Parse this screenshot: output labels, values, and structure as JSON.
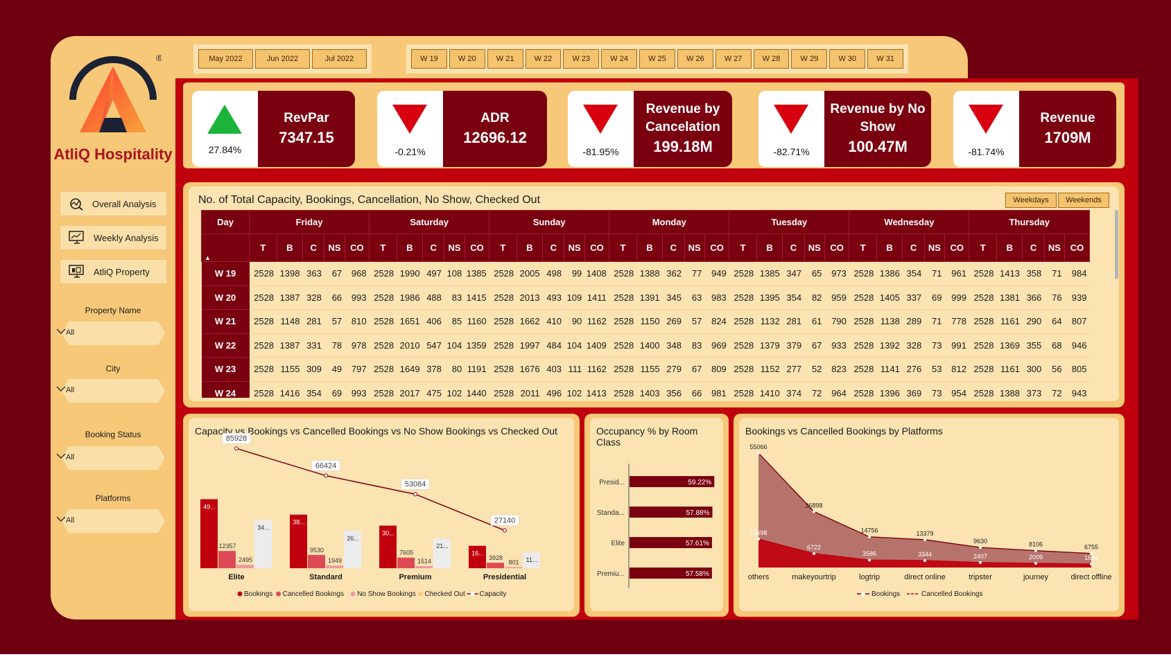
{
  "brand": {
    "name": "AtliQ Hospitality",
    "registered": "®"
  },
  "nav": [
    {
      "label": "Overall Analysis",
      "icon": "analysis-icon"
    },
    {
      "label": "Weekly Analysis",
      "icon": "monitor-chart-icon"
    },
    {
      "label": "AtliQ Property",
      "icon": "monitor-property-icon"
    }
  ],
  "filters": [
    {
      "label": "Property Name",
      "value": "All"
    },
    {
      "label": "City",
      "value": "All"
    },
    {
      "label": "Booking Status",
      "value": "All"
    },
    {
      "label": "Platforms",
      "value": "All"
    }
  ],
  "months": [
    "May 2022",
    "Jun 2022",
    "Jul 2022"
  ],
  "weeks": [
    "W 19",
    "W 20",
    "W 21",
    "W 22",
    "W 23",
    "W 24",
    "W 25",
    "W 26",
    "W 27",
    "W 28",
    "W 29",
    "W 30",
    "W 31"
  ],
  "kpis": [
    {
      "title": "RevPar",
      "value": "7347.15",
      "change": "27.84%",
      "direction": "up"
    },
    {
      "title": "ADR",
      "value": "12696.12",
      "change": "-0.21%",
      "direction": "down"
    },
    {
      "title": "Revenue by Cancelation",
      "value": "199.18M",
      "change": "-81.95%",
      "direction": "down"
    },
    {
      "title": "Revenue by No Show",
      "value": "100.47M",
      "change": "-82.71%",
      "direction": "down"
    },
    {
      "title": "Revenue",
      "value": "1709M",
      "change": "-81.74%",
      "direction": "down"
    }
  ],
  "colors": {
    "maroon": "#7a0010",
    "red": "#c1000e",
    "cream": "#f6c878",
    "green": "#1db43a",
    "arrow_red": "#d8000f"
  },
  "table": {
    "title": "No. of Total Capacity, Bookings, Cancellation, No Show, Checked Out",
    "toggles": [
      "Weekdays",
      "Weekends"
    ],
    "day_header": "Day",
    "sort_indicator": "▲",
    "days": [
      "Friday",
      "Saturday",
      "Sunday",
      "Monday",
      "Tuesday",
      "Wednesday",
      "Thursday"
    ],
    "metrics": [
      "T",
      "B",
      "C",
      "NS",
      "CO"
    ],
    "rows": [
      {
        "week": "W 19",
        "values": [
          2528,
          1398,
          363,
          67,
          968,
          2528,
          1990,
          497,
          108,
          1385,
          2528,
          2005,
          498,
          99,
          1408,
          2528,
          1388,
          362,
          77,
          949,
          2528,
          1385,
          347,
          65,
          973,
          2528,
          1386,
          354,
          71,
          961,
          2528,
          1413,
          358,
          71,
          984
        ]
      },
      {
        "week": "W 20",
        "values": [
          2528,
          1387,
          328,
          66,
          993,
          2528,
          1986,
          488,
          83,
          1415,
          2528,
          2013,
          493,
          109,
          1411,
          2528,
          1391,
          345,
          63,
          983,
          2528,
          1395,
          354,
          82,
          959,
          2528,
          1405,
          337,
          69,
          999,
          2528,
          1381,
          366,
          76,
          939
        ]
      },
      {
        "week": "W 21",
        "values": [
          2528,
          1148,
          281,
          57,
          810,
          2528,
          1651,
          406,
          85,
          1160,
          2528,
          1662,
          410,
          90,
          1162,
          2528,
          1150,
          269,
          57,
          824,
          2528,
          1132,
          281,
          61,
          790,
          2528,
          1138,
          289,
          71,
          778,
          2528,
          1161,
          290,
          64,
          807
        ]
      },
      {
        "week": "W 22",
        "values": [
          2528,
          1387,
          331,
          78,
          978,
          2528,
          2010,
          547,
          104,
          1359,
          2528,
          1997,
          484,
          104,
          1409,
          2528,
          1400,
          348,
          83,
          969,
          2528,
          1379,
          379,
          67,
          933,
          2528,
          1392,
          328,
          73,
          991,
          2528,
          1369,
          355,
          68,
          946
        ]
      },
      {
        "week": "W 23",
        "values": [
          2528,
          1155,
          309,
          49,
          797,
          2528,
          1649,
          378,
          80,
          1191,
          2528,
          1676,
          403,
          111,
          1162,
          2528,
          1155,
          279,
          67,
          809,
          2528,
          1152,
          277,
          52,
          823,
          2528,
          1141,
          276,
          53,
          812,
          2528,
          1161,
          300,
          56,
          805
        ]
      },
      {
        "week": "W 24",
        "values": [
          2528,
          1416,
          354,
          69,
          993,
          2528,
          2017,
          475,
          102,
          1440,
          2528,
          2011,
          496,
          102,
          1413,
          2528,
          1403,
          356,
          66,
          981,
          2528,
          1410,
          374,
          72,
          964,
          2528,
          1396,
          369,
          73,
          954,
          2528,
          1388,
          373,
          72,
          943
        ]
      }
    ]
  },
  "chart_data": [
    {
      "type": "bar",
      "title": "Capacity vs Bookings vs Cancelled Bookings vs No Show Bookings vs Checked Out",
      "categories": [
        "Elite",
        "Standard",
        "Premium",
        "Presidential"
      ],
      "series": [
        {
          "name": "Bookings",
          "values": [
            49505,
            38446,
            30566,
            16073
          ],
          "labels": [
            "49...",
            "38...",
            "30...",
            "16..."
          ],
          "color": "#c1000e"
        },
        {
          "name": "Cancelled Bookings",
          "values": [
            12357,
            9530,
            7605,
            3928
          ],
          "labels": [
            "12357",
            "9530",
            "7605",
            "3928"
          ],
          "color": "#dd4a55"
        },
        {
          "name": "No Show Bookings",
          "values": [
            2495,
            1949,
            1514,
            801
          ],
          "labels": [
            "2495",
            "1949",
            "1514",
            "801"
          ],
          "color": "#f09aa0"
        },
        {
          "name": "Checked Out",
          "values": [
            34653,
            26967,
            21447,
            11344
          ],
          "labels": [
            "34...",
            "26...",
            "21...",
            "11..."
          ],
          "color": "#ececec"
        }
      ],
      "line": {
        "name": "Capacity",
        "values": [
          85928,
          66424,
          53084,
          27140
        ],
        "labels": [
          "85928",
          "66424",
          "53084",
          "27140"
        ],
        "color": "#7a0010"
      },
      "ylim": [
        0,
        90000
      ],
      "legend": "bottom"
    },
    {
      "type": "bar",
      "orientation": "horizontal",
      "title": "Occupancy % by Room Class",
      "categories": [
        "Presid...",
        "Standa...",
        "Elite",
        "Premiu..."
      ],
      "values": [
        59.22,
        57.88,
        57.61,
        57.58
      ],
      "labels": [
        "59.22%",
        "57.88%",
        "57.61%",
        "57.58%"
      ],
      "xlim": [
        0,
        62
      ],
      "color": "#7a0010"
    },
    {
      "type": "area",
      "title": "Bookings vs Cancelled Bookings by Platforms",
      "categories": [
        "others",
        "makeyourtrip",
        "logtrip",
        "direct online",
        "tripster",
        "journey",
        "direct offline"
      ],
      "series": [
        {
          "name": "Bookings",
          "values": [
            55066,
            26898,
            14756,
            13379,
            9630,
            8106,
            6755
          ],
          "labels": [
            "55066",
            "26898",
            "14756",
            "13379",
            "9630",
            "8106",
            "6755"
          ],
          "color": "#b26d67"
        },
        {
          "name": "Cancelled Bookings",
          "values": [
            13698,
            6722,
            3586,
            3344,
            2407,
            2009,
            1684
          ],
          "labels": [
            "13698",
            "6722",
            "3586",
            "3344",
            "2407",
            "2009",
            "1684"
          ],
          "color": "#c1000e"
        }
      ],
      "ylim": [
        0,
        58000
      ],
      "legend": "bottom"
    }
  ]
}
